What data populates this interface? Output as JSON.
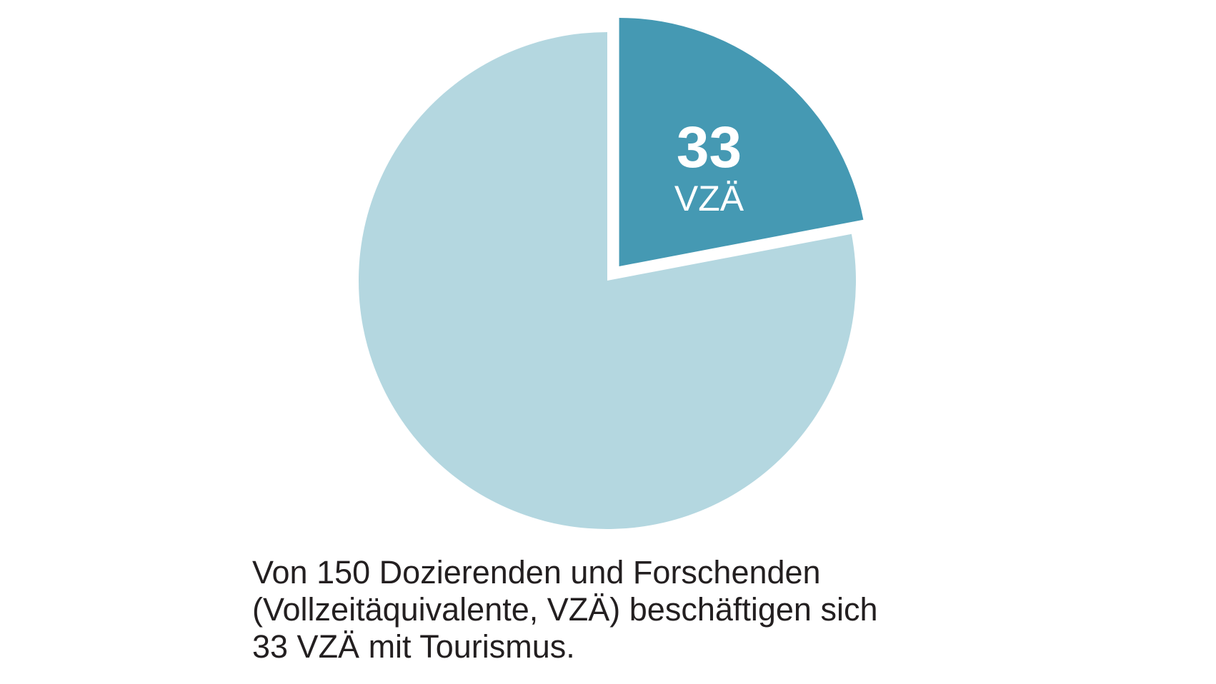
{
  "chart_data": {
    "type": "pie",
    "total": 150,
    "slices": [
      {
        "value": 33,
        "label_value": "33",
        "label_unit": "VZÄ",
        "color": "#4599b3",
        "exploded": true
      },
      {
        "value": 117,
        "color": "#b4d7e0",
        "exploded": false
      }
    ]
  },
  "caption": {
    "line1": "Von 150 Dozierenden und Forschenden",
    "line2": "(Vollzeitäquivalente, VZÄ) beschäftigen sich",
    "line3": "33 VZÄ mit Tourismus."
  }
}
